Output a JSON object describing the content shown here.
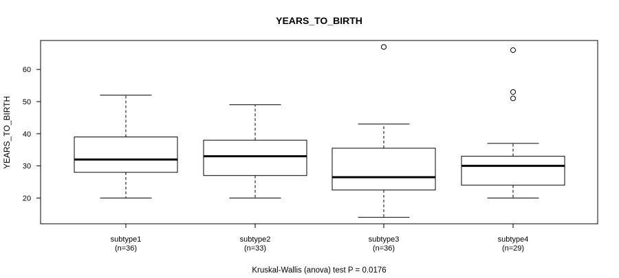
{
  "chart_data": {
    "type": "boxplot",
    "title": "YEARS_TO_BIRTH",
    "xlabel": "",
    "ylabel": "YEARS_TO_BIRTH",
    "ylim": [
      12,
      69
    ],
    "yticks": [
      20,
      30,
      40,
      50,
      60
    ],
    "grid": false,
    "categories": [
      {
        "name": "subtype1",
        "n_label": "(n=36)"
      },
      {
        "name": "subtype2",
        "n_label": "(n=33)"
      },
      {
        "name": "subtype3",
        "n_label": "(n=36)"
      },
      {
        "name": "subtype4",
        "n_label": "(n=29)"
      }
    ],
    "boxes": [
      {
        "whisker_low": 20,
        "q1": 28,
        "median": 32,
        "q3": 39,
        "whisker_high": 52,
        "outliers": []
      },
      {
        "whisker_low": 20,
        "q1": 27,
        "median": 33,
        "q3": 38,
        "whisker_high": 49,
        "outliers": []
      },
      {
        "whisker_low": 14,
        "q1": 22.5,
        "median": 26.5,
        "q3": 35.5,
        "whisker_high": 43,
        "outliers": [
          67
        ]
      },
      {
        "whisker_low": 20,
        "q1": 24,
        "median": 30,
        "q3": 33,
        "whisker_high": 37,
        "outliers": [
          51,
          53,
          66
        ]
      }
    ],
    "footnote": "Kruskal-Wallis (anova) test P = 0.0176"
  }
}
